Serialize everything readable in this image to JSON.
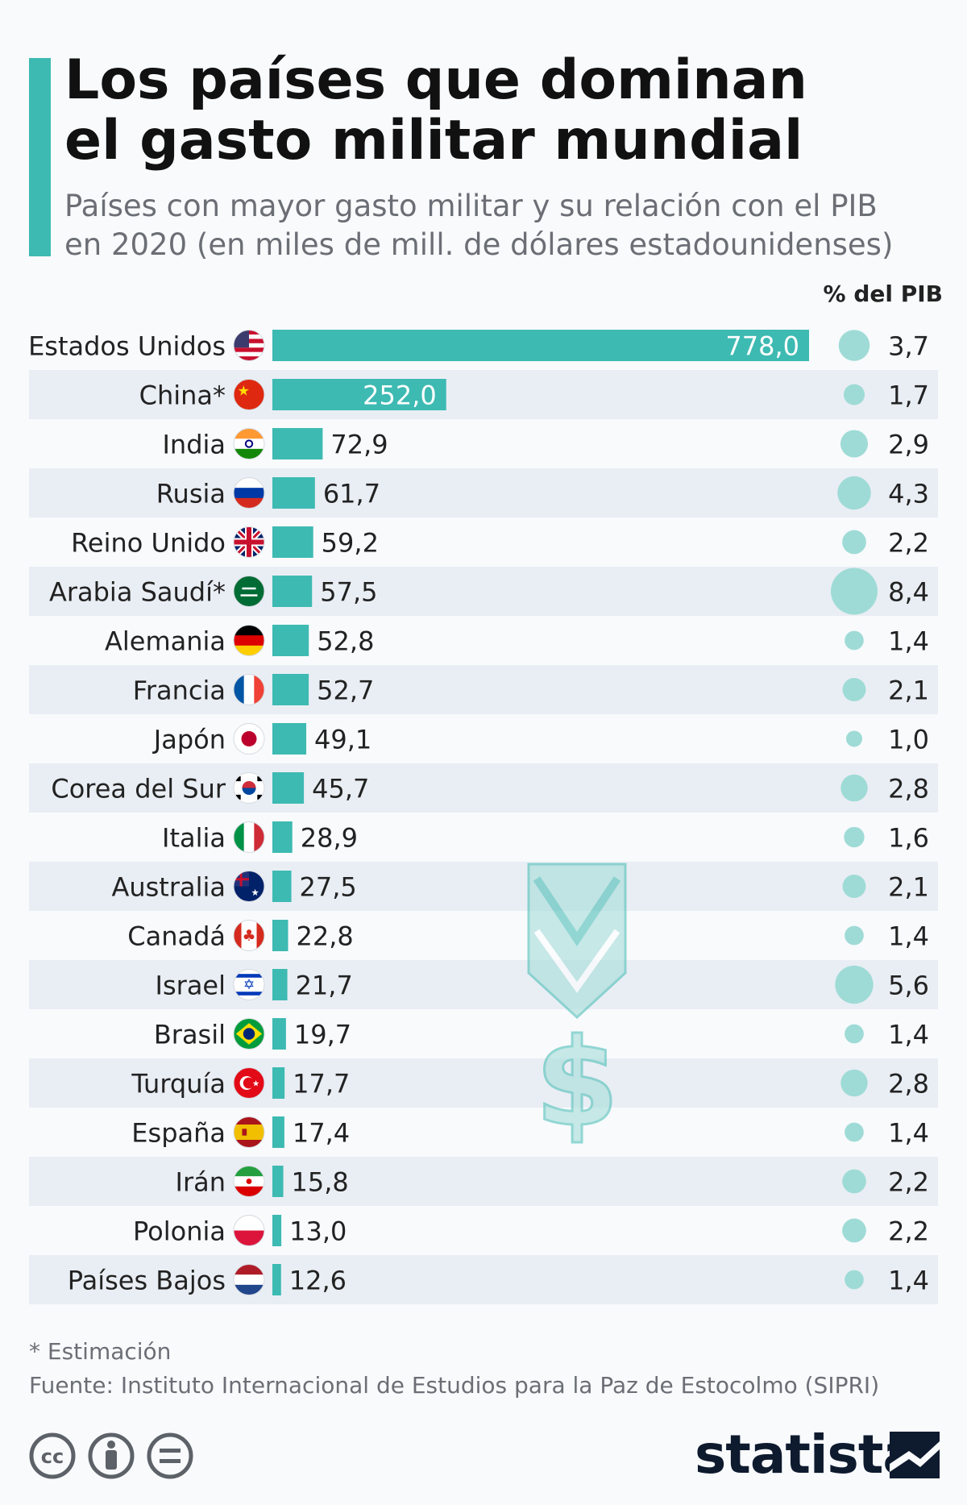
{
  "title_lines": [
    "Los países que dominan",
    "el gasto militar mundial"
  ],
  "subtitle_lines": [
    "Países con mayor gasto militar y su relación con el PIB",
    "en 2020 (en miles de mill. de dólares estadounidenses)"
  ],
  "gdp_header": "% del PIB",
  "footnote": "* Estimación",
  "source": "Fuente: Instituto Internacional de Estudios para la Paz de Estocolmo (SIPRI)",
  "brand": "statista",
  "chart_data": {
    "type": "bar",
    "orientation": "horizontal",
    "categories": [
      "Estados Unidos",
      "China",
      "India",
      "Rusia",
      "Reino Unido",
      "Arabia Saudí",
      "Alemania",
      "Francia",
      "Japón",
      "Corea del Sur",
      "Italia",
      "Australia",
      "Canadá",
      "Israel",
      "Brasil",
      "Turquía",
      "España",
      "Irán",
      "Polonia",
      "Países Bajos"
    ],
    "asterisk": [
      false,
      true,
      false,
      false,
      false,
      true,
      false,
      false,
      false,
      false,
      false,
      false,
      false,
      false,
      false,
      false,
      false,
      false,
      false,
      false
    ],
    "values": [
      778.0,
      252.0,
      72.9,
      61.7,
      59.2,
      57.5,
      52.8,
      52.7,
      49.1,
      45.7,
      28.9,
      27.5,
      22.8,
      21.7,
      19.7,
      17.7,
      17.4,
      15.8,
      13.0,
      12.6
    ],
    "value_labels": [
      "778,0",
      "252,0",
      "72,9",
      "61,7",
      "59,2",
      "57,5",
      "52,8",
      "52,7",
      "49,1",
      "45,7",
      "28,9",
      "27,5",
      "22,8",
      "21,7",
      "19,7",
      "17,7",
      "17,4",
      "15,8",
      "13,0",
      "12,6"
    ],
    "gdp_share": [
      3.7,
      1.7,
      2.9,
      4.3,
      2.2,
      8.4,
      1.4,
      2.1,
      1.0,
      2.8,
      1.6,
      2.1,
      1.4,
      5.6,
      1.4,
      2.8,
      1.4,
      2.2,
      2.2,
      1.4
    ],
    "gdp_share_labels": [
      "3,7",
      "1,7",
      "2,9",
      "4,3",
      "2,2",
      "8,4",
      "1,4",
      "2,1",
      "1,0",
      "2,8",
      "1,6",
      "2,1",
      "1,4",
      "5,6",
      "1,4",
      "2,8",
      "1,4",
      "2,2",
      "2,2",
      "1,4"
    ],
    "flag_icons": [
      "usa-flag-icon",
      "china-flag-icon",
      "india-flag-icon",
      "russia-flag-icon",
      "uk-flag-icon",
      "saudi-arabia-flag-icon",
      "germany-flag-icon",
      "france-flag-icon",
      "japan-flag-icon",
      "south-korea-flag-icon",
      "italy-flag-icon",
      "australia-flag-icon",
      "canada-flag-icon",
      "israel-flag-icon",
      "brazil-flag-icon",
      "turkey-flag-icon",
      "spain-flag-icon",
      "iran-flag-icon",
      "poland-flag-icon",
      "netherlands-flag-icon"
    ],
    "bar_color": "#3dbab2",
    "bubble_color": "#9fdbd6",
    "stripe_color": "#e9eef4",
    "xlim": [
      0,
      778
    ],
    "grid": false
  },
  "license_icons": [
    "creative-commons-icon",
    "attribution-icon",
    "no-derivatives-icon"
  ],
  "decoration_icon": "military-medal-dollar-icon"
}
